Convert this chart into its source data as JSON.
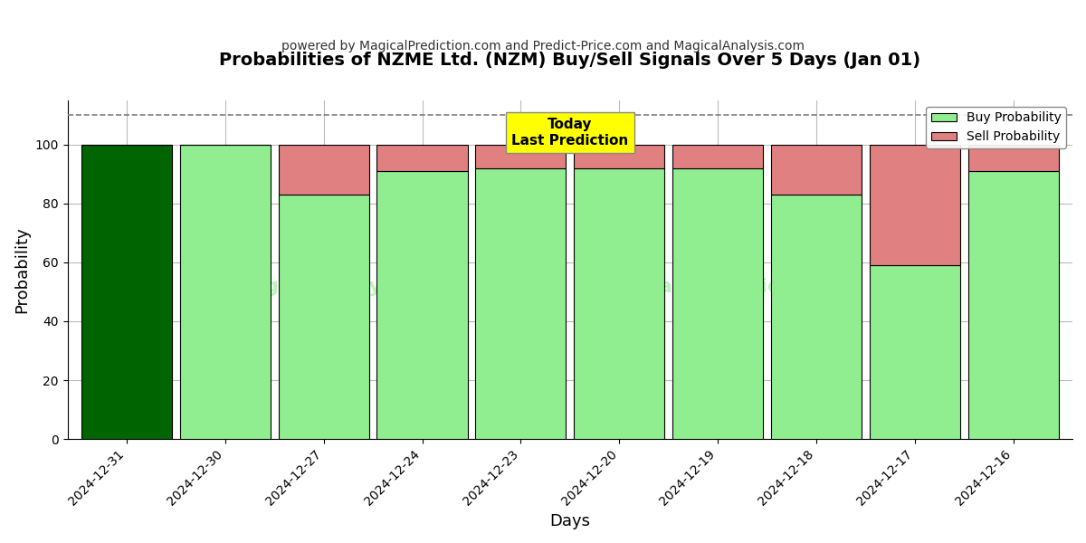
{
  "title": "Probabilities of NZME Ltd. (NZM) Buy/Sell Signals Over 5 Days (Jan 01)",
  "subtitle": "powered by MagicalPrediction.com and Predict-Price.com and MagicalAnalysis.com",
  "xlabel": "Days",
  "ylabel": "Probability",
  "dates": [
    "2024-12-31",
    "2024-12-30",
    "2024-12-27",
    "2024-12-24",
    "2024-12-23",
    "2024-12-20",
    "2024-12-19",
    "2024-12-18",
    "2024-12-17",
    "2024-12-16"
  ],
  "buy_prob": [
    100,
    100,
    83,
    91,
    92,
    92,
    92,
    83,
    59,
    91
  ],
  "sell_prob": [
    0,
    0,
    17,
    9,
    8,
    8,
    8,
    17,
    41,
    9
  ],
  "buy_colors": [
    "#006400",
    "#90EE90",
    "#90EE90",
    "#90EE90",
    "#90EE90",
    "#90EE90",
    "#90EE90",
    "#90EE90",
    "#90EE90",
    "#90EE90"
  ],
  "sell_color": "#E08080",
  "dashed_line_y": 110,
  "ylim": [
    0,
    115
  ],
  "yticks": [
    0,
    20,
    40,
    60,
    80,
    100
  ],
  "grid_color": "#BBBBBB",
  "bg_color": "#FFFFFF",
  "bar_edge_color": "#000000",
  "legend_buy_label": "Buy Probability",
  "legend_sell_label": "Sell Probability",
  "bar_width": 0.92
}
